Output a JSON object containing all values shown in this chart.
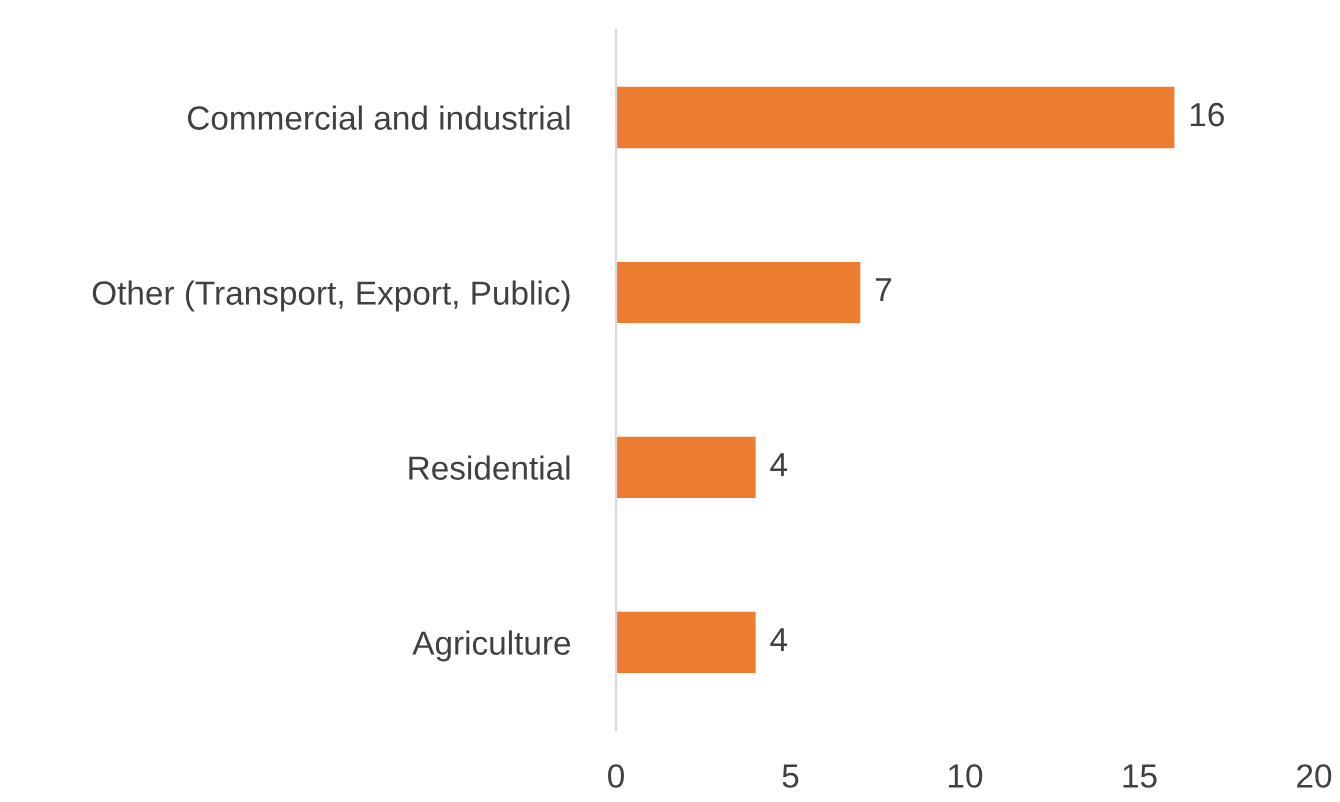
{
  "chart_data": {
    "type": "bar",
    "orientation": "horizontal",
    "categories": [
      "Commercial and industrial",
      "Other (Transport, Export, Public)",
      "Residential",
      "Agriculture"
    ],
    "values": [
      16,
      7,
      4,
      4
    ],
    "color": "#ed7d31",
    "xlim": [
      0,
      20
    ],
    "xticks": [
      0,
      5,
      10,
      15,
      20
    ],
    "data_labels": true,
    "grid": false,
    "legend": false
  }
}
